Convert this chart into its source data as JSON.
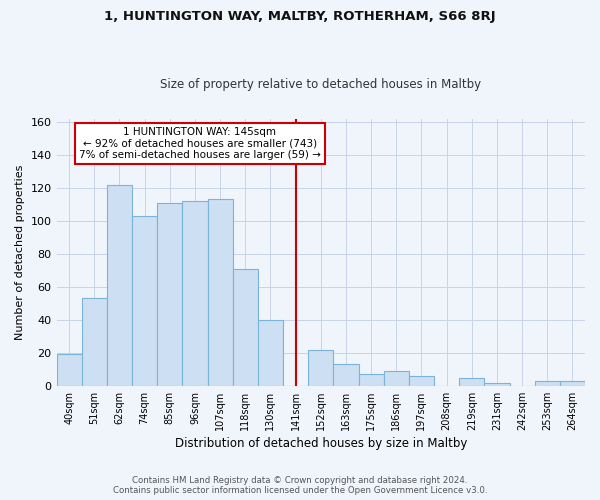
{
  "title": "1, HUNTINGTON WAY, MALTBY, ROTHERHAM, S66 8RJ",
  "subtitle": "Size of property relative to detached houses in Maltby",
  "xlabel": "Distribution of detached houses by size in Maltby",
  "ylabel": "Number of detached properties",
  "bar_labels": [
    "40sqm",
    "51sqm",
    "62sqm",
    "74sqm",
    "85sqm",
    "96sqm",
    "107sqm",
    "118sqm",
    "130sqm",
    "141sqm",
    "152sqm",
    "163sqm",
    "175sqm",
    "186sqm",
    "197sqm",
    "208sqm",
    "219sqm",
    "231sqm",
    "242sqm",
    "253sqm",
    "264sqm"
  ],
  "bar_values": [
    19,
    53,
    122,
    103,
    111,
    112,
    113,
    71,
    40,
    0,
    22,
    13,
    7,
    9,
    6,
    0,
    5,
    2,
    0,
    3,
    3
  ],
  "bar_color": "#cddff2",
  "bar_edge_color": "#7ab4d8",
  "vline_x_index": 9,
  "vline_color": "#cc0000",
  "annotation_text": "1 HUNTINGTON WAY: 145sqm\n← 92% of detached houses are smaller (743)\n7% of semi-detached houses are larger (59) →",
  "annotation_box_color": "#ffffff",
  "annotation_box_edge": "#cc0000",
  "ylim": [
    0,
    162
  ],
  "yticks": [
    0,
    20,
    40,
    60,
    80,
    100,
    120,
    140,
    160
  ],
  "footer_line1": "Contains HM Land Registry data © Crown copyright and database right 2024.",
  "footer_line2": "Contains public sector information licensed under the Open Government Licence v3.0.",
  "bg_color": "#f0f4fb",
  "grid_color": "#c8d4e8",
  "fig_width": 6.0,
  "fig_height": 5.0
}
